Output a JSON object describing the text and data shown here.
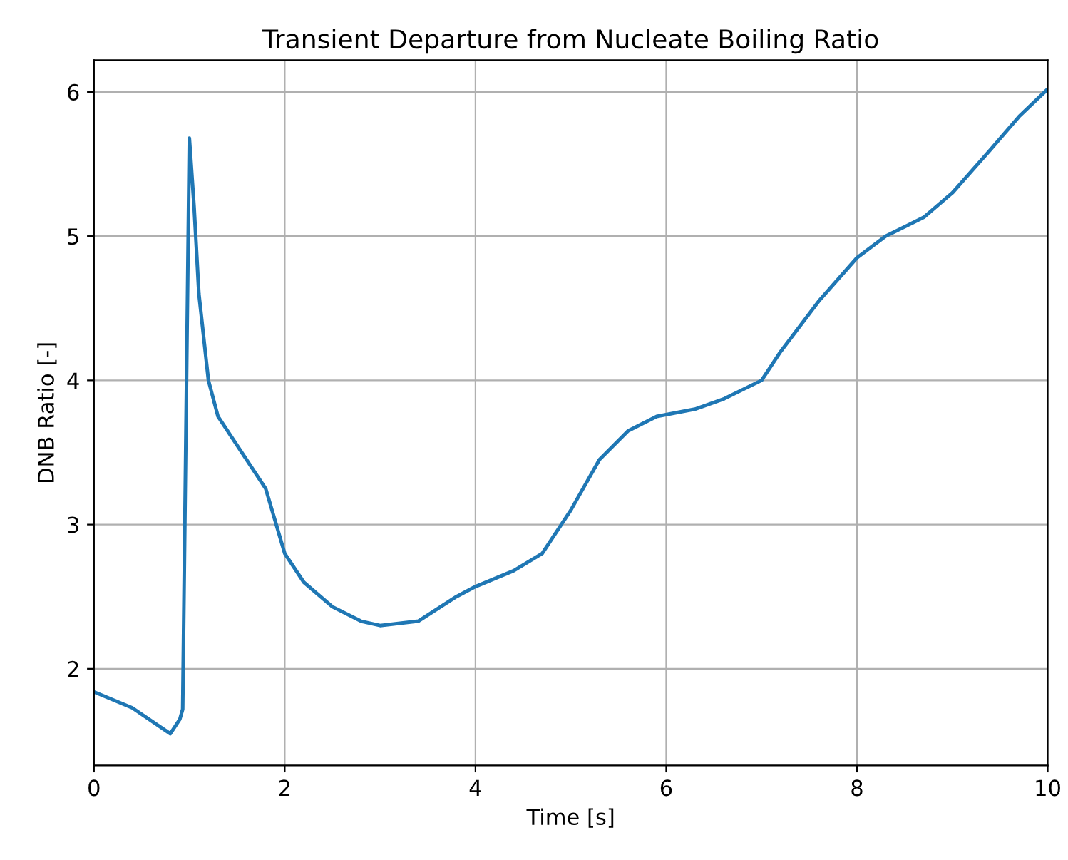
{
  "chart_data": {
    "type": "line",
    "title": "Transient Departure from Nucleate Boiling Ratio",
    "xlabel": "Time [s]",
    "ylabel": "DNB Ratio [-]",
    "x": [
      0,
      0.4,
      0.8,
      0.9,
      0.93,
      1.0,
      1.05,
      1.1,
      1.2,
      1.3,
      1.5,
      1.8,
      2.0,
      2.2,
      2.5,
      2.8,
      3.0,
      3.4,
      3.8,
      4.0,
      4.4,
      4.7,
      5.0,
      5.3,
      5.6,
      5.9,
      6.3,
      6.6,
      7.0,
      7.2,
      7.6,
      8.0,
      8.3,
      8.7,
      9.0,
      9.4,
      9.7,
      10.0
    ],
    "series": [
      {
        "color": "#1f77b4",
        "values": [
          1.84,
          1.73,
          1.55,
          1.65,
          1.72,
          5.68,
          5.2,
          4.6,
          4.0,
          3.75,
          3.55,
          3.25,
          2.8,
          2.6,
          2.43,
          2.33,
          2.3,
          2.33,
          2.5,
          2.57,
          2.68,
          2.8,
          3.1,
          3.45,
          3.65,
          3.75,
          3.8,
          3.87,
          4.0,
          4.2,
          4.55,
          4.85,
          5.0,
          5.13,
          5.3,
          5.6,
          5.83,
          6.02
        ]
      }
    ],
    "xlim": [
      0,
      10
    ],
    "xticks": [
      0,
      2,
      4,
      6,
      8,
      10
    ],
    "ylim": [
      1.33,
      6.22
    ],
    "yticks": [
      2,
      3,
      4,
      5,
      6
    ],
    "grid": true
  }
}
